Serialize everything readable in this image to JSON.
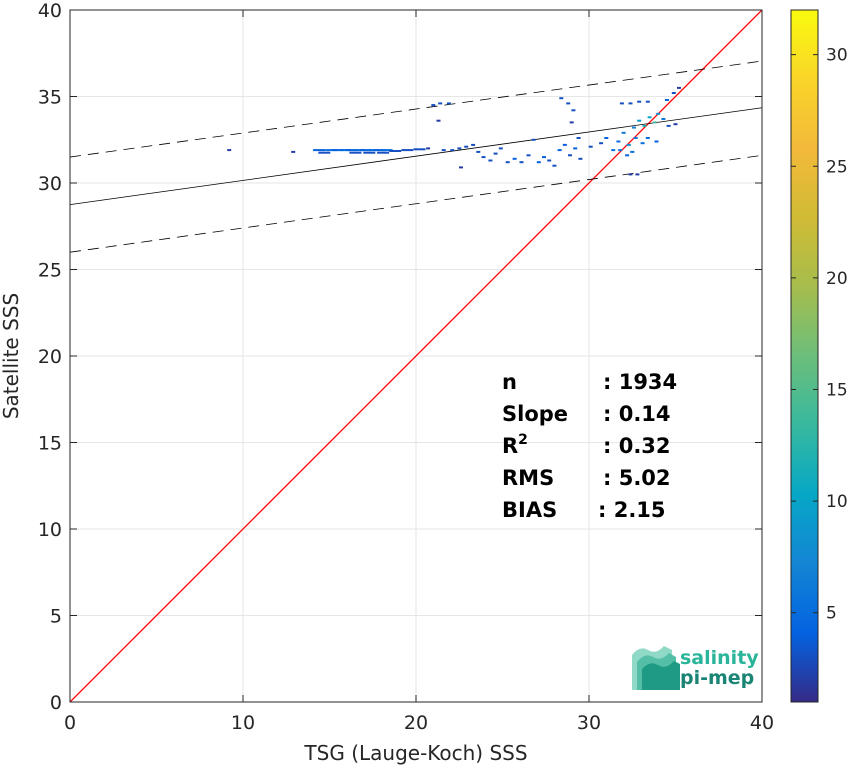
{
  "chart_data": {
    "type": "scatter",
    "xlabel": "TSG (Lauge-Koch) SSS",
    "ylabel": "Satellite SSS",
    "xlim": [
      0,
      40
    ],
    "ylim": [
      0,
      40
    ],
    "x_ticks": [
      "0",
      "10",
      "20",
      "30",
      "40"
    ],
    "y_ticks": [
      "0",
      "5",
      "10",
      "15",
      "20",
      "25",
      "30",
      "35",
      "40"
    ],
    "grid": true,
    "colorbar": {
      "range": [
        1,
        32
      ],
      "ticks": [
        "5",
        "10",
        "15",
        "20",
        "25",
        "30"
      ],
      "colormap": "parula"
    },
    "stats": [
      {
        "label": "n",
        "value": ": 1934"
      },
      {
        "label": "Slope",
        "value": ": 0.14"
      },
      {
        "label": "R",
        "sup": "2",
        "value": ": 0.32"
      },
      {
        "label": "RMS",
        "value": ": 5.02"
      },
      {
        "label": "BIAS",
        "value": ": 2.15"
      }
    ],
    "one_to_one_line": {
      "x": [
        0,
        40
      ],
      "y": [
        0,
        40
      ],
      "color": "#ff0000"
    },
    "fit_line": {
      "x": [
        0,
        40
      ],
      "y": [
        28.75,
        34.35
      ],
      "color": "#000000"
    },
    "fit_bounds": [
      {
        "x": [
          0,
          40
        ],
        "y": [
          31.5,
          37.05
        ]
      },
      {
        "x": [
          0,
          40
        ],
        "y": [
          26.0,
          31.6
        ]
      }
    ],
    "points": [
      {
        "x": 9.2,
        "y": 31.9,
        "c": 2
      },
      {
        "x": 12.9,
        "y": 31.8,
        "c": 2
      },
      {
        "x": 14.4,
        "y": 31.9,
        "c": 4
      },
      {
        "x": 14.7,
        "y": 31.75,
        "c": 3
      },
      {
        "x": 15.1,
        "y": 31.9,
        "c": 5
      },
      {
        "x": 15.5,
        "y": 31.9,
        "c": 4
      },
      {
        "x": 15.9,
        "y": 31.9,
        "c": 5
      },
      {
        "x": 16.3,
        "y": 31.9,
        "c": 4
      },
      {
        "x": 16.7,
        "y": 31.9,
        "c": 5
      },
      {
        "x": 17.1,
        "y": 31.9,
        "c": 4
      },
      {
        "x": 17.5,
        "y": 31.9,
        "c": 5
      },
      {
        "x": 17.9,
        "y": 31.9,
        "c": 4
      },
      {
        "x": 18.3,
        "y": 31.9,
        "c": 5
      },
      {
        "x": 16.5,
        "y": 31.75,
        "c": 3
      },
      {
        "x": 17.3,
        "y": 31.75,
        "c": 3
      },
      {
        "x": 18.1,
        "y": 31.75,
        "c": 3
      },
      {
        "x": 18.8,
        "y": 31.85,
        "c": 3
      },
      {
        "x": 19.5,
        "y": 31.9,
        "c": 3
      },
      {
        "x": 20.2,
        "y": 31.95,
        "c": 3
      },
      {
        "x": 20.7,
        "y": 32.0,
        "c": 2
      },
      {
        "x": 21.0,
        "y": 34.5,
        "c": 3
      },
      {
        "x": 21.4,
        "y": 34.6,
        "c": 3
      },
      {
        "x": 21.9,
        "y": 34.6,
        "c": 3
      },
      {
        "x": 21.3,
        "y": 33.6,
        "c": 2
      },
      {
        "x": 21.6,
        "y": 31.9,
        "c": 3
      },
      {
        "x": 22.1,
        "y": 31.9,
        "c": 3
      },
      {
        "x": 22.5,
        "y": 32.0,
        "c": 3
      },
      {
        "x": 22.9,
        "y": 32.1,
        "c": 3
      },
      {
        "x": 23.3,
        "y": 32.2,
        "c": 3
      },
      {
        "x": 23.6,
        "y": 31.8,
        "c": 3
      },
      {
        "x": 23.9,
        "y": 31.5,
        "c": 3
      },
      {
        "x": 22.6,
        "y": 30.9,
        "c": 2
      },
      {
        "x": 24.3,
        "y": 31.3,
        "c": 3
      },
      {
        "x": 24.6,
        "y": 31.7,
        "c": 3
      },
      {
        "x": 24.9,
        "y": 32.0,
        "c": 3
      },
      {
        "x": 25.3,
        "y": 31.2,
        "c": 3
      },
      {
        "x": 25.7,
        "y": 31.4,
        "c": 4
      },
      {
        "x": 26.1,
        "y": 31.2,
        "c": 3
      },
      {
        "x": 26.5,
        "y": 31.6,
        "c": 3
      },
      {
        "x": 26.8,
        "y": 32.5,
        "c": 3
      },
      {
        "x": 27.1,
        "y": 31.2,
        "c": 4
      },
      {
        "x": 27.4,
        "y": 31.5,
        "c": 4
      },
      {
        "x": 27.7,
        "y": 31.3,
        "c": 3
      },
      {
        "x": 28.0,
        "y": 31.0,
        "c": 3
      },
      {
        "x": 28.3,
        "y": 31.9,
        "c": 4
      },
      {
        "x": 28.6,
        "y": 32.2,
        "c": 4
      },
      {
        "x": 28.9,
        "y": 31.6,
        "c": 3
      },
      {
        "x": 29.2,
        "y": 32.0,
        "c": 4
      },
      {
        "x": 29.5,
        "y": 31.4,
        "c": 3
      },
      {
        "x": 28.4,
        "y": 34.9,
        "c": 3
      },
      {
        "x": 28.8,
        "y": 34.6,
        "c": 3
      },
      {
        "x": 29.1,
        "y": 34.2,
        "c": 3
      },
      {
        "x": 29.0,
        "y": 33.5,
        "c": 2
      },
      {
        "x": 29.4,
        "y": 32.6,
        "c": 3
      },
      {
        "x": 30.1,
        "y": 32.1,
        "c": 3
      },
      {
        "x": 30.7,
        "y": 32.3,
        "c": 3
      },
      {
        "x": 31.0,
        "y": 32.6,
        "c": 4
      },
      {
        "x": 31.4,
        "y": 31.9,
        "c": 5
      },
      {
        "x": 31.7,
        "y": 32.4,
        "c": 5
      },
      {
        "x": 32.0,
        "y": 32.9,
        "c": 6
      },
      {
        "x": 32.2,
        "y": 31.6,
        "c": 4
      },
      {
        "x": 32.4,
        "y": 30.5,
        "c": 2
      },
      {
        "x": 32.8,
        "y": 30.5,
        "c": 2
      },
      {
        "x": 31.9,
        "y": 34.6,
        "c": 3
      },
      {
        "x": 32.4,
        "y": 34.6,
        "c": 3
      },
      {
        "x": 32.9,
        "y": 34.7,
        "c": 3
      },
      {
        "x": 33.4,
        "y": 34.7,
        "c": 3
      },
      {
        "x": 32.6,
        "y": 33.2,
        "c": 7
      },
      {
        "x": 32.9,
        "y": 33.6,
        "c": 9
      },
      {
        "x": 33.2,
        "y": 33.3,
        "c": 12
      },
      {
        "x": 33.5,
        "y": 33.8,
        "c": 10
      },
      {
        "x": 33.8,
        "y": 33.5,
        "c": 14
      },
      {
        "x": 34.0,
        "y": 34.0,
        "c": 8
      },
      {
        "x": 34.3,
        "y": 33.7,
        "c": 6
      },
      {
        "x": 32.3,
        "y": 32.2,
        "c": 8
      },
      {
        "x": 32.7,
        "y": 32.6,
        "c": 6
      },
      {
        "x": 33.1,
        "y": 32.3,
        "c": 5
      },
      {
        "x": 31.8,
        "y": 31.9,
        "c": 6
      },
      {
        "x": 32.5,
        "y": 31.8,
        "c": 5
      },
      {
        "x": 33.4,
        "y": 32.6,
        "c": 5
      },
      {
        "x": 33.9,
        "y": 32.4,
        "c": 4
      },
      {
        "x": 34.5,
        "y": 34.8,
        "c": 4
      },
      {
        "x": 34.9,
        "y": 35.2,
        "c": 3
      },
      {
        "x": 35.2,
        "y": 35.5,
        "c": 2
      },
      {
        "x": 34.6,
        "y": 33.3,
        "c": 3
      },
      {
        "x": 35.0,
        "y": 33.4,
        "c": 2
      }
    ]
  },
  "logo": {
    "line1": "salinity",
    "line2": "pi-mep"
  }
}
